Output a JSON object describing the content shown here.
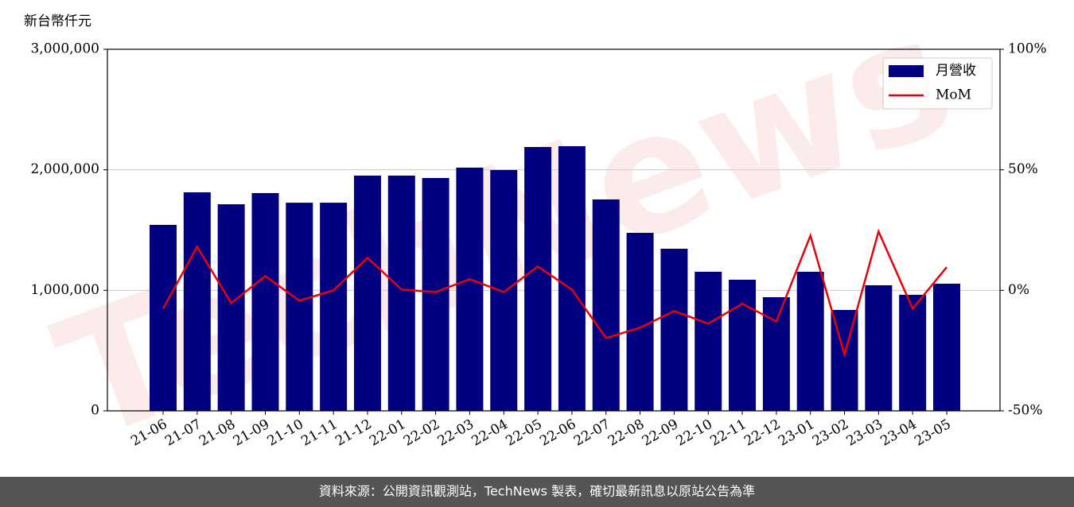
{
  "chart_data": {
    "type": "bar_line",
    "y_label": "新台幣仟元",
    "watermark": "TechNews",
    "categories": [
      "21-06",
      "21-07",
      "21-08",
      "21-09",
      "21-10",
      "21-11",
      "21-12",
      "22-01",
      "22-02",
      "22-03",
      "22-04",
      "22-05",
      "22-06",
      "22-07",
      "22-08",
      "22-09",
      "22-10",
      "22-11",
      "22-12",
      "23-01",
      "23-02",
      "23-03",
      "23-04",
      "23-05"
    ],
    "series": [
      {
        "name": "月營收",
        "type": "bar",
        "color": "#000080",
        "values": [
          1543000,
          1813000,
          1714000,
          1807000,
          1727000,
          1727000,
          1952000,
          1952000,
          1932000,
          2018000,
          1998000,
          2189000,
          2196000,
          1754000,
          1477000,
          1345000,
          1154000,
          1088000,
          943000,
          1154000,
          837000,
          1042000,
          963000,
          1055000
        ]
      },
      {
        "name": "MoM",
        "type": "line",
        "axis": "y2",
        "color": "#e8000b",
        "values": [
          -7.6,
          18.1,
          -5.3,
          5.9,
          -4.3,
          0,
          13.5,
          0.3,
          -0.7,
          4.6,
          -0.7,
          9.9,
          0.3,
          -19.8,
          -15.5,
          -8.6,
          -13.8,
          -5.6,
          -12.9,
          22.7,
          -26.7,
          24.4,
          -7.6,
          9.6
        ]
      }
    ],
    "ylim": [
      0,
      3000000
    ],
    "yticks": [
      0,
      {
        "value": 1000000,
        "label": "1,000,000"
      },
      {
        "value": 2000000,
        "label": "2,000,000"
      },
      {
        "value": 3000000,
        "label": "3,000,000"
      }
    ],
    "y2lim": [
      -50,
      100
    ],
    "y2ticks": [
      {
        "value": -50,
        "label": "-50%"
      },
      {
        "value": 0,
        "label": "0%"
      },
      {
        "value": 50,
        "label": "50%"
      },
      {
        "value": 100,
        "label": "100%"
      }
    ],
    "grid": true,
    "legend": "upper right"
  },
  "footer": {
    "text": "資料來源：公開資訊觀測站，TechNews 製表，確切最新訊息以原站公告為準"
  }
}
